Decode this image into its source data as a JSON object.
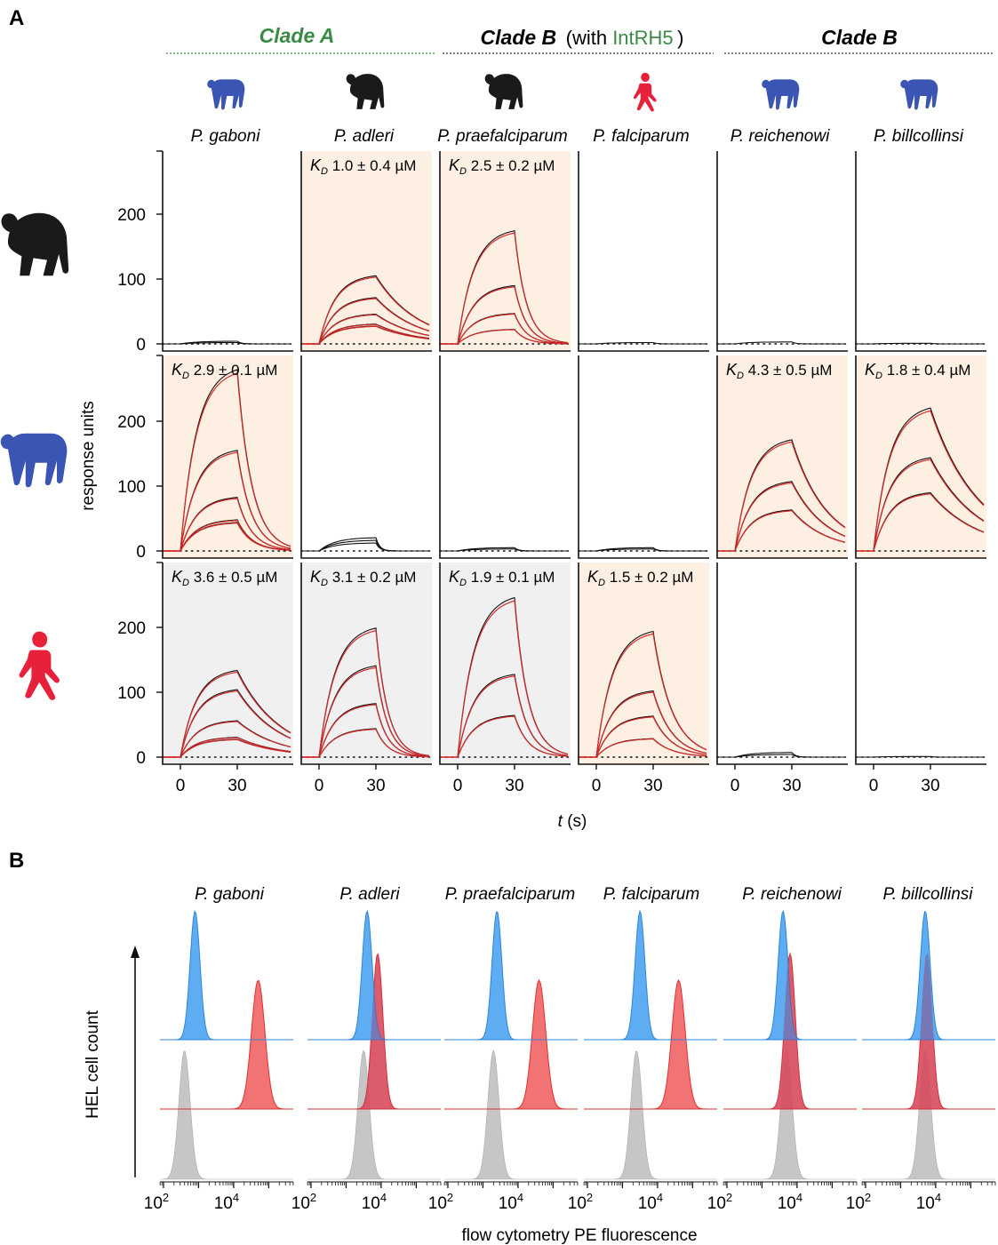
{
  "panels": {
    "a": "A",
    "b": "B"
  },
  "clades": {
    "cladeA": "Clade A",
    "cladeB_intrh5_bold": "Clade B",
    "cladeB_intrh5_open": "(with ",
    "cladeB_intrh5_green": "IntRH5",
    "cladeB_intrh5_close": ")",
    "cladeB": "Clade B"
  },
  "colors": {
    "cladeA_green": "#3a8a45",
    "gorilla_black": "#1a1a1a",
    "chimp_blue": "#3a55b4",
    "human_red": "#e8213a",
    "fit_red": "#d62a2a",
    "trace_black": "#111111",
    "shade_peach": "#fdf0e3",
    "shade_gray": "#f0f0f0",
    "hist_blue": "#4da3f0",
    "hist_red": "#f05a5a",
    "hist_gray": "#c6c6c6"
  },
  "species": [
    "P. gaboni",
    "P. adleri",
    "P. praefalciparum",
    "P. falciparum",
    "P. reichenowi",
    "P. billcollinsi"
  ],
  "species_host_icons": [
    "chimpanzee-icon",
    "gorilla-icon",
    "gorilla-icon",
    "human-icon",
    "chimpanzee-icon",
    "chimpanzee-icon"
  ],
  "row_host_icons": [
    "gorilla-icon",
    "chimpanzee-icon",
    "human-icon"
  ],
  "chart_data": [
    {
      "type": "line",
      "panel": "A",
      "ylabel": "response units",
      "xlabel": "t (s)",
      "x_ticks": [
        0,
        30
      ],
      "y_ticks": [
        0,
        100,
        200
      ],
      "ylim": [
        -5,
        295
      ],
      "rows": [
        {
          "host": "gorilla",
          "cells": [
            {
              "species": "P. gaboni",
              "shade": "none",
              "kd": null,
              "peaks": [
                4,
                2
              ],
              "fit": false,
              "decay": 0.5
            },
            {
              "species": "P. adleri",
              "shade": "peach",
              "kd": {
                "symbol": "K",
                "sub": "D",
                "text": " 1.0 ± 0.4 µM"
              },
              "peaks": [
                103,
                70,
                45,
                30,
                27
              ],
              "fit": true,
              "decay": 0.045
            },
            {
              "species": "P. praefalciparum",
              "shade": "peach",
              "kd": {
                "symbol": "K",
                "sub": "D",
                "text": " 2.5 ± 0.2 µM"
              },
              "peaks": [
                171,
                88,
                46,
                22
              ],
              "fit": true,
              "decay": 0.16
            },
            {
              "species": "P. falciparum",
              "shade": "none",
              "kd": null,
              "peaks": [
                2
              ],
              "fit": false,
              "decay": 0.5
            },
            {
              "species": "P. reichenowi",
              "shade": "none",
              "kd": null,
              "peaks": [
                3
              ],
              "fit": false,
              "decay": 0.5
            },
            {
              "species": "P. billcollinsi",
              "shade": "none",
              "kd": null,
              "peaks": [
                1
              ],
              "fit": false,
              "decay": 0.5
            }
          ]
        },
        {
          "host": "chimpanzee",
          "cells": [
            {
              "species": "P. gaboni",
              "shade": "peach",
              "kd": {
                "symbol": "K",
                "sub": "D",
                "text": " 2.9 ± 0.1 µM"
              },
              "peaks": [
                274,
                152,
                81,
                47,
                43
              ],
              "fit": true,
              "decay": 0.13
            },
            {
              "species": "P. adleri",
              "shade": "none",
              "kd": null,
              "peaks": [
                20,
                16,
                12
              ],
              "fit": false,
              "decay": 0.5
            },
            {
              "species": "P. praefalciparum",
              "shade": "none",
              "kd": null,
              "peaks": [
                5,
                3
              ],
              "fit": false,
              "decay": 0.5
            },
            {
              "species": "P. falciparum",
              "shade": "none",
              "kd": null,
              "peaks": [
                5,
                3
              ],
              "fit": false,
              "decay": 0.5
            },
            {
              "species": "P. reichenowi",
              "shade": "peach",
              "kd": {
                "symbol": "K",
                "sub": "D",
                "text": " 4.3 ± 0.5 µM"
              },
              "peaks": [
                168,
                105,
                62
              ],
              "fit": true,
              "decay": 0.055
            },
            {
              "species": "P. billcollinsi",
              "shade": "peach",
              "kd": {
                "symbol": "K",
                "sub": "D",
                "text": " 1.8 ± 0.4 µM"
              },
              "peaks": [
                216,
                141,
                88
              ],
              "fit": true,
              "decay": 0.04
            }
          ]
        },
        {
          "host": "human",
          "cells": [
            {
              "species": "P. gaboni",
              "shade": "gray",
              "kd": {
                "symbol": "K",
                "sub": "D",
                "text": " 3.6 ± 0.5 µM"
              },
              "peaks": [
                131,
                102,
                55,
                30,
                27
              ],
              "fit": true,
              "decay": 0.045
            },
            {
              "species": "P. adleri",
              "shade": "gray",
              "kd": {
                "symbol": "K",
                "sub": "D",
                "text": " 3.1 ± 0.2 µM"
              },
              "peaks": [
                195,
                138,
                81,
                43
              ],
              "fit": true,
              "decay": 0.16
            },
            {
              "species": "P. praefalciparum",
              "shade": "gray",
              "kd": {
                "symbol": "K",
                "sub": "D",
                "text": " 1.9 ± 0.1 µM"
              },
              "peaks": [
                241,
                125,
                63
              ],
              "fit": true,
              "decay": 0.14
            },
            {
              "species": "P. falciparum",
              "shade": "peach",
              "kd": {
                "symbol": "K",
                "sub": "D",
                "text": " 1.5 ± 0.2 µM"
              },
              "peaks": [
                190,
                100,
                62,
                28
              ],
              "fit": true,
              "decay": 0.1
            },
            {
              "species": "P. reichenowi",
              "shade": "none",
              "kd": null,
              "peaks": [
                7,
                4
              ],
              "fit": false,
              "decay": 0.5
            },
            {
              "species": "P. billcollinsi",
              "shade": "none",
              "kd": null,
              "peaks": [
                1
              ],
              "fit": false,
              "decay": 0.5
            }
          ]
        }
      ]
    },
    {
      "type": "histogram",
      "panel": "B",
      "xlabel": "flow cytometry PE fluorescence",
      "ylabel": "HEL cell count",
      "x_scale": "log",
      "x_ticks": [
        {
          "base": "10",
          "exp": "2"
        },
        {
          "base": "10",
          "exp": "4"
        }
      ],
      "cells": [
        {
          "species": "P. gaboni",
          "blue_peak_log": 2.9,
          "red_peak_log": 4.7,
          "gray_peak_log": 2.6,
          "red_overlaps": false
        },
        {
          "species": "P. adleri",
          "blue_peak_log": 3.6,
          "red_peak_log": 3.9,
          "gray_peak_log": 3.5,
          "red_overlaps": true
        },
        {
          "species": "P. praefalciparum",
          "blue_peak_log": 3.4,
          "red_peak_log": 4.6,
          "gray_peak_log": 3.3,
          "red_overlaps": false
        },
        {
          "species": "P. falciparum",
          "blue_peak_log": 3.5,
          "red_peak_log": 4.6,
          "gray_peak_log": 3.4,
          "red_overlaps": false
        },
        {
          "species": "P. reichenowi",
          "blue_peak_log": 3.6,
          "red_peak_log": 3.8,
          "gray_peak_log": 3.7,
          "red_overlaps": true
        },
        {
          "species": "P. billcollinsi",
          "blue_peak_log": 3.7,
          "red_peak_log": 3.75,
          "gray_peak_log": 3.7,
          "red_overlaps": true
        }
      ]
    }
  ]
}
